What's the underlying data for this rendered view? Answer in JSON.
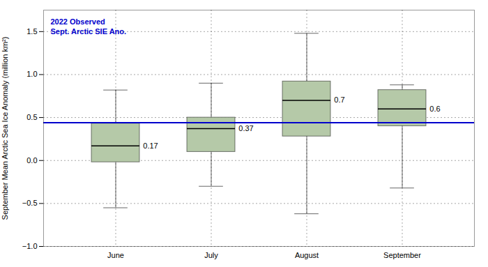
{
  "chart_data": {
    "type": "box",
    "categories": [
      "June",
      "July",
      "August",
      "September"
    ],
    "boxes": [
      {
        "whislo": -0.55,
        "q1": -0.02,
        "med": 0.17,
        "q3": 0.43,
        "whishi": 0.82
      },
      {
        "whislo": -0.3,
        "q1": 0.1,
        "med": 0.37,
        "q3": 0.5,
        "whishi": 0.9
      },
      {
        "whislo": -0.62,
        "q1": 0.28,
        "med": 0.7,
        "q3": 0.92,
        "whishi": 1.48
      },
      {
        "whislo": -0.32,
        "q1": 0.4,
        "med": 0.6,
        "q3": 0.82,
        "whishi": 0.88
      }
    ],
    "data_labels": true,
    "color": "#b5c9a8",
    "ylabel": "September Mean Arctic Sea Ice Anomaly (million km²)",
    "ylim": [
      -1.0,
      1.75
    ],
    "yticks": [
      {
        "value": -1.0,
        "label": "−1.0"
      },
      {
        "value": -0.5,
        "label": "−0.5"
      },
      {
        "value": 0.0,
        "label": "0.0"
      },
      0.5,
      {
        "value": 1.0,
        "label": "1.0"
      },
      1.5
    ],
    "grid": true,
    "reference_line": {
      "value": 0.44,
      "color": "#0000cc",
      "label": [
        "2022 Observed",
        "Sept. Arctic SIE Ano."
      ]
    }
  }
}
